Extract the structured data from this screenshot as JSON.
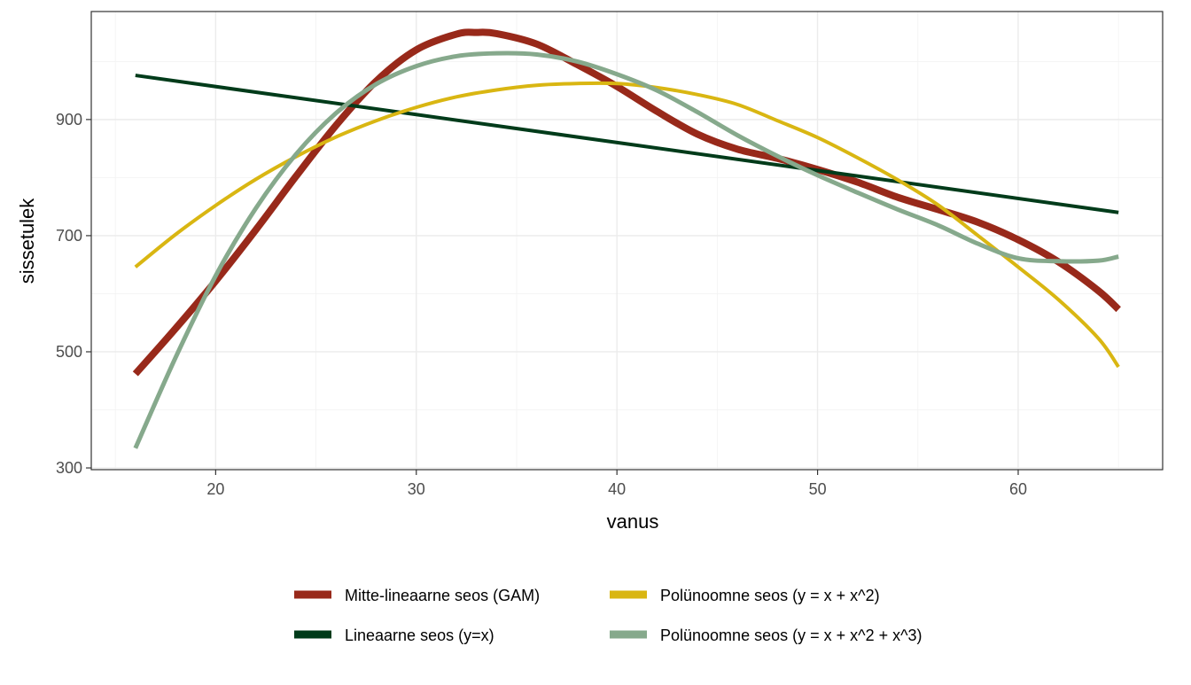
{
  "chart_data": {
    "type": "line",
    "title": "",
    "xlabel": "vanus",
    "ylabel": "sissetulek",
    "xlim": [
      13.8,
      67.2
    ],
    "ylim": [
      297,
      1086
    ],
    "x_ticks": [
      20,
      30,
      40,
      50,
      60
    ],
    "y_ticks": [
      300,
      500,
      700,
      900
    ],
    "x_minor_ticks": [
      15,
      25,
      35,
      45,
      55,
      65
    ],
    "y_minor_ticks": [
      400,
      600,
      800,
      1000
    ],
    "grid": true,
    "legend_position": "bottom",
    "series": [
      {
        "name": "Mitte-lineaarne seos (GAM)",
        "color": "#98291a",
        "width": 8,
        "x": [
          16,
          18,
          20,
          22,
          24,
          26,
          28,
          30,
          32,
          33,
          34,
          36,
          38,
          40,
          42,
          44,
          46,
          48,
          50,
          52,
          54,
          56,
          58,
          60,
          62,
          64,
          65
        ],
        "y": [
          462,
          540,
          622,
          710,
          802,
          890,
          966,
          1020,
          1047,
          1050,
          1048,
          1030,
          995,
          957,
          914,
          875,
          849,
          833,
          814,
          792,
          766,
          745,
          723,
          693,
          655,
          605,
          573
        ]
      },
      {
        "name": "Lineaarne seos (y=x)",
        "color": "#003b1a",
        "width": 4,
        "x": [
          16,
          65
        ],
        "y": [
          976,
          740
        ]
      },
      {
        "name": "Polünoomne seos (y = x + x^2)",
        "color": "#d9b612",
        "width": 4,
        "x": [
          16,
          18,
          20,
          22,
          24,
          26,
          28,
          30,
          32,
          34,
          36,
          38,
          40,
          42,
          44,
          46,
          48,
          50,
          52,
          54,
          56,
          58,
          60,
          62,
          64,
          65
        ],
        "y": [
          646,
          702,
          752,
          797,
          836,
          870,
          898,
          921,
          939,
          951,
          959,
          962,
          962,
          955,
          943,
          926,
          898,
          869,
          834,
          796,
          753,
          700,
          646,
          590,
          523,
          474
        ]
      },
      {
        "name": "Polünoomne seos (y = x + x^2 + x^3)",
        "color": "#86a98c",
        "width": 5,
        "x": [
          16,
          18,
          20,
          22,
          24,
          26,
          28,
          30,
          32,
          34,
          36,
          38,
          40,
          42,
          44,
          46,
          48,
          50,
          52,
          54,
          56,
          58,
          60,
          62,
          64,
          65
        ],
        "y": [
          334,
          490,
          631,
          747,
          840,
          911,
          961,
          992,
          1009,
          1014,
          1012,
          1000,
          978,
          950,
          913,
          873,
          837,
          804,
          774,
          745,
          718,
          686,
          661,
          656,
          657,
          664
        ]
      }
    ]
  }
}
